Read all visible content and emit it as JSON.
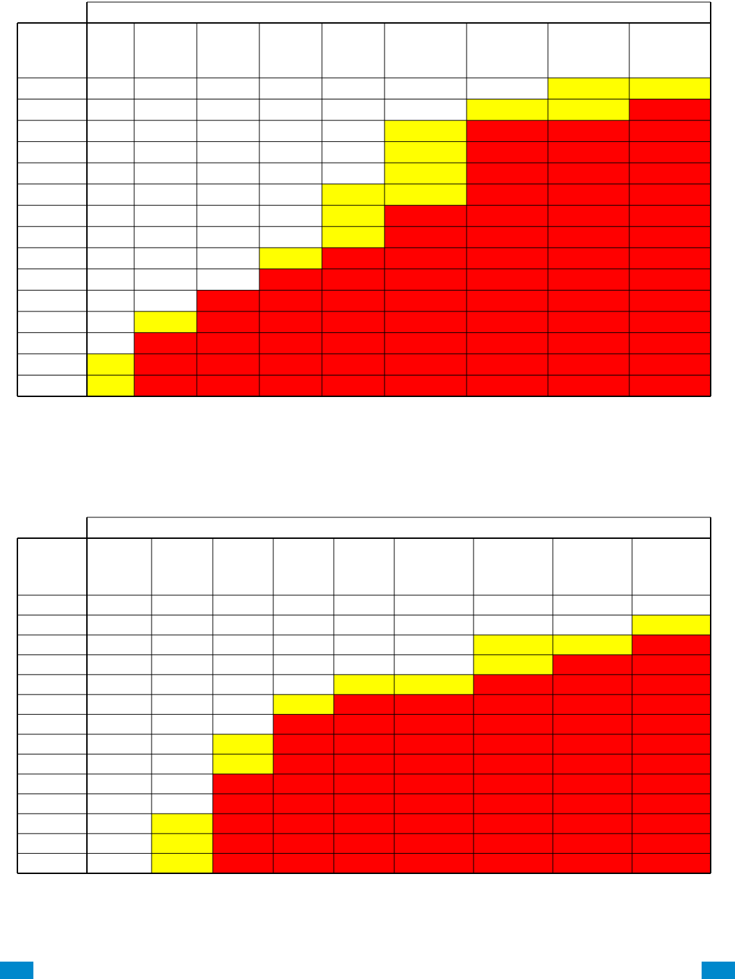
{
  "tables": [
    {
      "rows": [
        [
          "#ffffff",
          "#ffffff",
          "#ffffff",
          "#ffffff",
          "#ffffff",
          "#ffffff",
          "#ffffff",
          "#ffff00",
          "#ffff00"
        ],
        [
          "#ffffff",
          "#ffffff",
          "#ffffff",
          "#ffffff",
          "#ffffff",
          "#ffffff",
          "#ffff00",
          "#ffff00",
          "#ff0000"
        ],
        [
          "#ffffff",
          "#ffffff",
          "#ffffff",
          "#ffffff",
          "#ffffff",
          "#ffff00",
          "#ff0000",
          "#ff0000",
          "#ff0000"
        ],
        [
          "#ffffff",
          "#ffffff",
          "#ffffff",
          "#ffffff",
          "#ffffff",
          "#ffff00",
          "#ff0000",
          "#ff0000",
          "#ff0000"
        ],
        [
          "#ffffff",
          "#ffffff",
          "#ffffff",
          "#ffffff",
          "#ffffff",
          "#ffff00",
          "#ff0000",
          "#ff0000",
          "#ff0000"
        ],
        [
          "#ffffff",
          "#ffffff",
          "#ffffff",
          "#ffffff",
          "#ffff00",
          "#ffff00",
          "#ff0000",
          "#ff0000",
          "#ff0000"
        ],
        [
          "#ffffff",
          "#ffffff",
          "#ffffff",
          "#ffffff",
          "#ffff00",
          "#ff0000",
          "#ff0000",
          "#ff0000",
          "#ff0000"
        ],
        [
          "#ffffff",
          "#ffffff",
          "#ffffff",
          "#ffffff",
          "#ffff00",
          "#ff0000",
          "#ff0000",
          "#ff0000",
          "#ff0000"
        ],
        [
          "#ffffff",
          "#ffffff",
          "#ffffff",
          "#ffff00",
          "#ff0000",
          "#ff0000",
          "#ff0000",
          "#ff0000",
          "#ff0000"
        ],
        [
          "#ffffff",
          "#ffffff",
          "#ffffff",
          "#ff0000",
          "#ff0000",
          "#ff0000",
          "#ff0000",
          "#ff0000",
          "#ff0000"
        ],
        [
          "#ffffff",
          "#ffffff",
          "#ff0000",
          "#ff0000",
          "#ff0000",
          "#ff0000",
          "#ff0000",
          "#ff0000",
          "#ff0000"
        ],
        [
          "#ffffff",
          "#ffff00",
          "#ff0000",
          "#ff0000",
          "#ff0000",
          "#ff0000",
          "#ff0000",
          "#ff0000",
          "#ff0000"
        ],
        [
          "#ffffff",
          "#ff0000",
          "#ff0000",
          "#ff0000",
          "#ff0000",
          "#ff0000",
          "#ff0000",
          "#ff0000",
          "#ff0000"
        ],
        [
          "#ffff00",
          "#ff0000",
          "#ff0000",
          "#ff0000",
          "#ff0000",
          "#ff0000",
          "#ff0000",
          "#ff0000",
          "#ff0000"
        ],
        [
          "#ffff00",
          "#ff0000",
          "#ff0000",
          "#ff0000",
          "#ff0000",
          "#ff0000",
          "#ff0000",
          "#ff0000",
          "#ff0000"
        ]
      ]
    },
    {
      "rows": [
        [
          "#ffffff",
          "#ffffff",
          "#ffffff",
          "#ffffff",
          "#ffffff",
          "#ffffff",
          "#ffffff",
          "#ffffff",
          "#ffffff"
        ],
        [
          "#ffffff",
          "#ffffff",
          "#ffffff",
          "#ffffff",
          "#ffffff",
          "#ffffff",
          "#ffffff",
          "#ffffff",
          "#ffff00"
        ],
        [
          "#ffffff",
          "#ffffff",
          "#ffffff",
          "#ffffff",
          "#ffffff",
          "#ffffff",
          "#ffff00",
          "#ffff00",
          "#ff0000"
        ],
        [
          "#ffffff",
          "#ffffff",
          "#ffffff",
          "#ffffff",
          "#ffffff",
          "#ffffff",
          "#ffff00",
          "#ff0000",
          "#ff0000"
        ],
        [
          "#ffffff",
          "#ffffff",
          "#ffffff",
          "#ffffff",
          "#ffff00",
          "#ffff00",
          "#ff0000",
          "#ff0000",
          "#ff0000"
        ],
        [
          "#ffffff",
          "#ffffff",
          "#ffffff",
          "#ffff00",
          "#ff0000",
          "#ff0000",
          "#ff0000",
          "#ff0000",
          "#ff0000"
        ],
        [
          "#ffffff",
          "#ffffff",
          "#ffffff",
          "#ff0000",
          "#ff0000",
          "#ff0000",
          "#ff0000",
          "#ff0000",
          "#ff0000"
        ],
        [
          "#ffffff",
          "#ffffff",
          "#ffff00",
          "#ff0000",
          "#ff0000",
          "#ff0000",
          "#ff0000",
          "#ff0000",
          "#ff0000"
        ],
        [
          "#ffffff",
          "#ffffff",
          "#ffff00",
          "#ff0000",
          "#ff0000",
          "#ff0000",
          "#ff0000",
          "#ff0000",
          "#ff0000"
        ],
        [
          "#ffffff",
          "#ffffff",
          "#ff0000",
          "#ff0000",
          "#ff0000",
          "#ff0000",
          "#ff0000",
          "#ff0000",
          "#ff0000"
        ],
        [
          "#ffffff",
          "#ffffff",
          "#ff0000",
          "#ff0000",
          "#ff0000",
          "#ff0000",
          "#ff0000",
          "#ff0000",
          "#ff0000"
        ],
        [
          "#ffffff",
          "#ffff00",
          "#ff0000",
          "#ff0000",
          "#ff0000",
          "#ff0000",
          "#ff0000",
          "#ff0000",
          "#ff0000"
        ],
        [
          "#ffffff",
          "#ffff00",
          "#ff0000",
          "#ff0000",
          "#ff0000",
          "#ff0000",
          "#ff0000",
          "#ff0000",
          "#ff0000"
        ],
        [
          "#ffffff",
          "#ffff00",
          "#ff0000",
          "#ff0000",
          "#ff0000",
          "#ff0000",
          "#ff0000",
          "#ff0000",
          "#ff0000"
        ]
      ]
    }
  ]
}
